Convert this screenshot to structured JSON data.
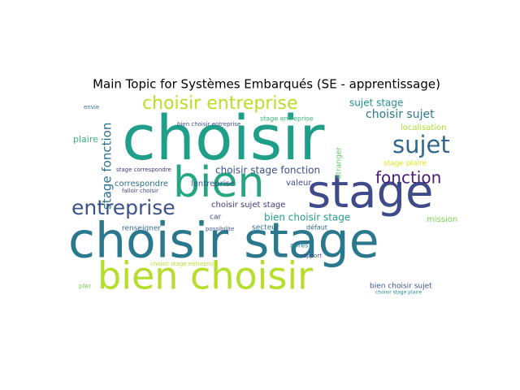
{
  "chart_data": {
    "type": "wordcloud",
    "title": "Main Topic for Systèmes Embarqués (SE - apprentissage)",
    "words": [
      {
        "text": "choisir",
        "weight": 76,
        "color": "#1f9e89"
      },
      {
        "text": "choisir stage",
        "weight": 60,
        "color": "#2a788e"
      },
      {
        "text": "bien choisir",
        "weight": 46,
        "color": "#b5de2b"
      },
      {
        "text": "stage",
        "weight": 56,
        "color": "#3e4a89"
      },
      {
        "text": "bien",
        "weight": 52,
        "color": "#25a584"
      },
      {
        "text": "choisir entreprise",
        "weight": 22,
        "color": "#b8de29"
      },
      {
        "text": "entreprise",
        "weight": 25,
        "color": "#3b528b"
      },
      {
        "text": "sujet",
        "weight": 29,
        "color": "#31688e"
      },
      {
        "text": "fonction",
        "weight": 20,
        "color": "#481f70"
      },
      {
        "text": "stage fonction",
        "weight": 15,
        "color": "#2c728e"
      },
      {
        "text": "choisir sujet",
        "weight": 14,
        "color": "#2a788e"
      },
      {
        "text": "sujet stage",
        "weight": 12,
        "color": "#21918c"
      },
      {
        "text": "choisir stage fonction",
        "weight": 12,
        "color": "#3b528b"
      },
      {
        "text": "bien choisir stage",
        "weight": 12,
        "color": "#1fa088"
      },
      {
        "text": "choisir sujet stage",
        "weight": 10,
        "color": "#443983"
      },
      {
        "text": "lentreprise",
        "weight": 10,
        "color": "#38588c"
      },
      {
        "text": "correspondre",
        "weight": 10,
        "color": "#2c728e"
      },
      {
        "text": "plaire",
        "weight": 11,
        "color": "#35b779"
      },
      {
        "text": "valeur",
        "weight": 10,
        "color": "#3e4a89"
      },
      {
        "text": "localisation",
        "weight": 10,
        "color": "#addc30"
      },
      {
        "text": "stage plaire",
        "weight": 9,
        "color": "#dde318"
      },
      {
        "text": "mission",
        "weight": 10,
        "color": "#7ad151"
      },
      {
        "text": "étranger",
        "weight": 9,
        "color": "#5ec962"
      },
      {
        "text": "secteur",
        "weight": 9,
        "color": "#2c728e"
      },
      {
        "text": "renseigner",
        "weight": 9,
        "color": "#31688e"
      },
      {
        "text": "car",
        "weight": 9,
        "color": "#3e4a89"
      },
      {
        "text": "après",
        "weight": 8,
        "color": "#26828e"
      },
      {
        "text": "défaut",
        "weight": 8,
        "color": "#31688e"
      },
      {
        "text": "bien choisir sujet",
        "weight": 9,
        "color": "#3b528b"
      },
      {
        "text": "choisir stage entreprise",
        "weight": 7,
        "color": "#b5de2b"
      },
      {
        "text": "falloir choisir",
        "weight": 7,
        "color": "#3e4a89"
      },
      {
        "text": "stage correspondre",
        "weight": 7,
        "color": "#443983"
      },
      {
        "text": "bien choisir entreprise",
        "weight": 7,
        "color": "#3b528b"
      },
      {
        "text": "stage entreprise",
        "weight": 8,
        "color": "#35b779"
      },
      {
        "text": "envie",
        "weight": 7,
        "color": "#2c728e"
      },
      {
        "text": "pler",
        "weight": 8,
        "color": "#7ad151"
      },
      {
        "text": "possibilite",
        "weight": 7,
        "color": "#3b528b"
      },
      {
        "text": "rapport",
        "weight": 7,
        "color": "#3e4a89"
      },
      {
        "text": "choisir stage plaire",
        "weight": 6,
        "color": "#21918c"
      }
    ]
  }
}
